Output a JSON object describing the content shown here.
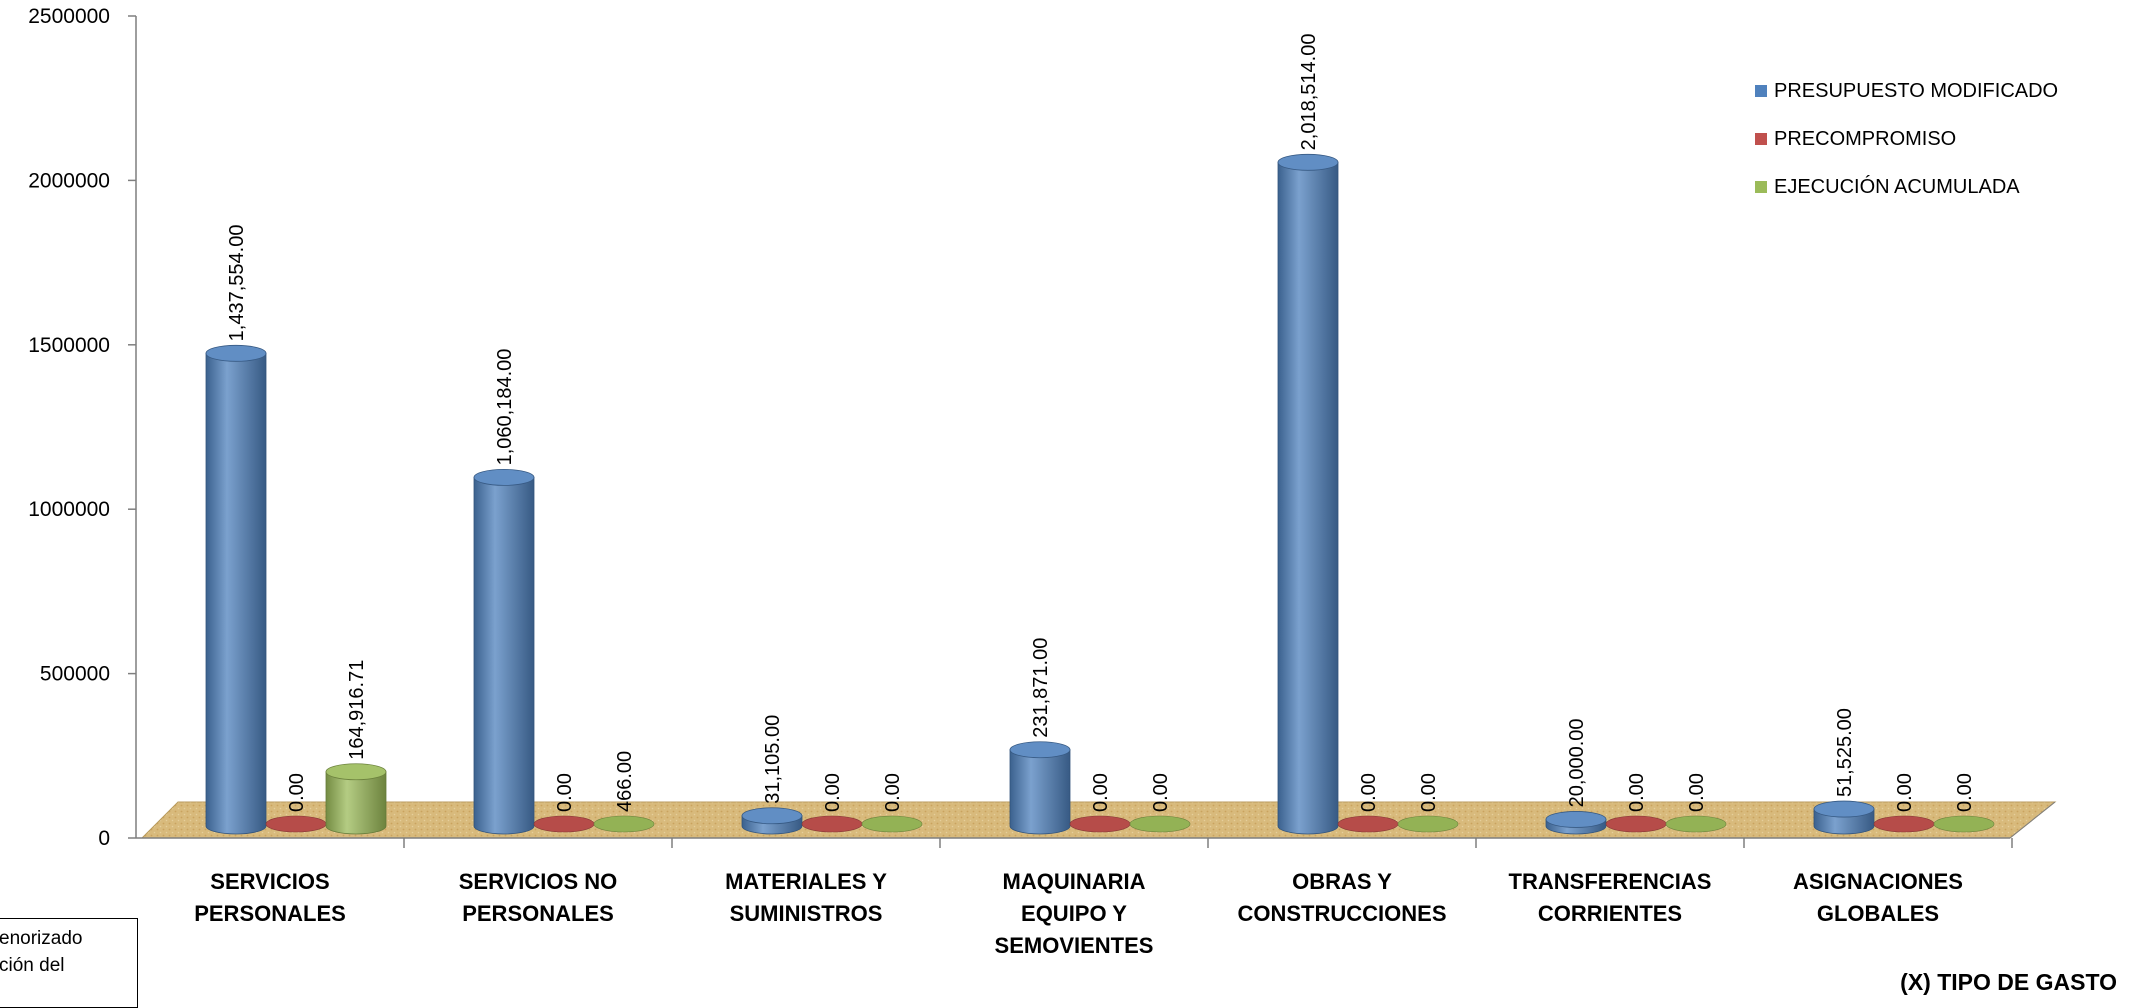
{
  "chart_data": {
    "type": "bar",
    "style": "3d-cylinder",
    "categories": [
      [
        "SERVICIOS",
        "PERSONALES"
      ],
      [
        "SERVICIOS NO",
        "PERSONALES"
      ],
      [
        "MATERIALES Y",
        "SUMINISTROS"
      ],
      [
        "MAQUINARIA",
        "EQUIPO Y",
        "SEMOVIENTES"
      ],
      [
        "OBRAS Y",
        "CONSTRUCCIONES"
      ],
      [
        "TRANSFERENCIAS",
        "CORRIENTES"
      ],
      [
        "ASIGNACIONES",
        "GLOBALES"
      ]
    ],
    "series": [
      {
        "name": "PRESUPUESTO MODIFICADO",
        "color": "#4f81bd",
        "values": [
          1437554.0,
          1060184.0,
          31105.0,
          231871.0,
          2018514.0,
          20000.0,
          51525.0
        ],
        "labels": [
          "1,437,554.00",
          "1,060,184.00",
          "31,105.00",
          "231,871.00",
          "2,018,514.00",
          "20,000.00",
          "51,525.00"
        ]
      },
      {
        "name": "PRECOMPROMISO",
        "color": "#c0504d",
        "values": [
          0,
          0,
          0,
          0,
          0,
          0,
          0
        ],
        "labels": [
          "0.00",
          "0.00",
          "0.00",
          "0.00",
          "0.00",
          "0.00",
          "0.00"
        ]
      },
      {
        "name": "EJECUCIÓN ACUMULADA",
        "color": "#9bbb59",
        "values": [
          164916.71,
          466.0,
          0,
          0,
          0,
          0,
          0
        ],
        "labels": [
          "164,916.71",
          "466.00",
          "0.00",
          "0.00",
          "0.00",
          "0.00",
          "0.00"
        ]
      }
    ],
    "y_ticks": [
      "0",
      "500000",
      "1000000",
      "1500000",
      "2000000",
      "2500000"
    ],
    "ylim": [
      0,
      2500000
    ],
    "xlabel": "(X) TIPO DE GASTO",
    "legend": "top-right",
    "grid": false,
    "floor_color": "#d6b676"
  },
  "note": {
    "lines": [
      "enorizado",
      "ción del"
    ]
  }
}
